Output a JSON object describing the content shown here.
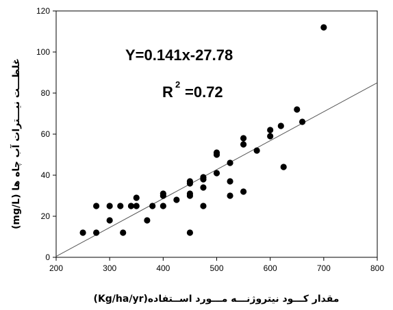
{
  "chart_data": {
    "type": "scatter",
    "xlabel": "مقدار کـــود نیتروژنـــه مـــورد اســتفاده(Kg/ha/yr)",
    "ylabel": "غلظـــت نیـــترات آب چاه ها (mg/L)",
    "xlim": [
      200,
      800
    ],
    "ylim": [
      0,
      120
    ],
    "x_ticks": [
      "200",
      "300",
      "400",
      "500",
      "600",
      "700",
      "800"
    ],
    "y_ticks": [
      "0",
      "20",
      "40",
      "60",
      "80",
      "100",
      "120"
    ],
    "equation": "Y=0.141x-27.78",
    "r2_prefix": "R",
    "r2_exp": "2",
    "r2_value": "=0.72",
    "fit_line": {
      "slope": 0.141,
      "intercept": -27.78
    },
    "points": [
      {
        "x": 250,
        "y": 12
      },
      {
        "x": 275,
        "y": 25
      },
      {
        "x": 275,
        "y": 12
      },
      {
        "x": 300,
        "y": 25
      },
      {
        "x": 300,
        "y": 18
      },
      {
        "x": 320,
        "y": 25
      },
      {
        "x": 325,
        "y": 12
      },
      {
        "x": 340,
        "y": 25
      },
      {
        "x": 350,
        "y": 25
      },
      {
        "x": 350,
        "y": 29
      },
      {
        "x": 370,
        "y": 18
      },
      {
        "x": 380,
        "y": 25
      },
      {
        "x": 400,
        "y": 25
      },
      {
        "x": 400,
        "y": 30
      },
      {
        "x": 400,
        "y": 31
      },
      {
        "x": 425,
        "y": 28
      },
      {
        "x": 450,
        "y": 12
      },
      {
        "x": 450,
        "y": 30
      },
      {
        "x": 450,
        "y": 31
      },
      {
        "x": 450,
        "y": 36
      },
      {
        "x": 450,
        "y": 37
      },
      {
        "x": 475,
        "y": 25
      },
      {
        "x": 475,
        "y": 34
      },
      {
        "x": 475,
        "y": 38
      },
      {
        "x": 475,
        "y": 39
      },
      {
        "x": 500,
        "y": 41
      },
      {
        "x": 500,
        "y": 50
      },
      {
        "x": 500,
        "y": 51
      },
      {
        "x": 525,
        "y": 30
      },
      {
        "x": 525,
        "y": 37
      },
      {
        "x": 525,
        "y": 46
      },
      {
        "x": 550,
        "y": 32
      },
      {
        "x": 550,
        "y": 55
      },
      {
        "x": 550,
        "y": 58
      },
      {
        "x": 575,
        "y": 52
      },
      {
        "x": 600,
        "y": 59
      },
      {
        "x": 600,
        "y": 62
      },
      {
        "x": 620,
        "y": 64
      },
      {
        "x": 625,
        "y": 44
      },
      {
        "x": 650,
        "y": 72
      },
      {
        "x": 660,
        "y": 66
      },
      {
        "x": 700,
        "y": 112
      }
    ]
  }
}
